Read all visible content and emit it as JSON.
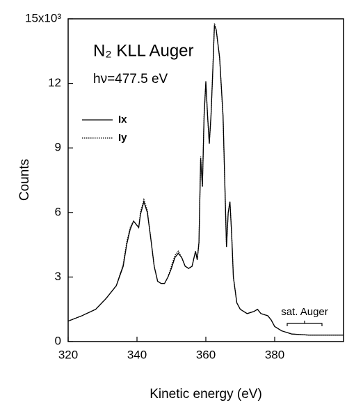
{
  "chart_data": {
    "type": "line",
    "title": "N₂ KLL Auger",
    "subtitle": "hν=477.5  eV",
    "x_label": "Kinetic energy (eV)",
    "y_label": "Counts",
    "annotation": "sat. Auger",
    "x": [
      320,
      324,
      328,
      331,
      334,
      336,
      337,
      338,
      339,
      340,
      340.5,
      341,
      342,
      343,
      344,
      345,
      346,
      347,
      348,
      349,
      350,
      351,
      352,
      353,
      354,
      355,
      356,
      357,
      357.5,
      358,
      358.5,
      359,
      359.5,
      360,
      360.5,
      361,
      361.5,
      362,
      362.5,
      363,
      364,
      365,
      366,
      366.5,
      367,
      367.5,
      368,
      369,
      370,
      372,
      374,
      375,
      376,
      378,
      379,
      380,
      382,
      385,
      390,
      395,
      400
    ],
    "series": [
      {
        "name": "Ix",
        "color": "#000000",
        "dash": "solid",
        "values": [
          0.95,
          1.2,
          1.5,
          2.0,
          2.6,
          3.5,
          4.5,
          5.2,
          5.6,
          5.4,
          5.3,
          5.9,
          6.5,
          6.0,
          4.8,
          3.5,
          2.8,
          2.7,
          2.7,
          3.0,
          3.4,
          3.9,
          4.1,
          3.9,
          3.5,
          3.4,
          3.5,
          4.2,
          3.8,
          4.6,
          8.5,
          7.2,
          10.5,
          12.1,
          10.5,
          9.2,
          10.5,
          12.5,
          14.7,
          14.5,
          13.2,
          10.5,
          4.4,
          6.0,
          6.5,
          5.0,
          3.0,
          1.8,
          1.5,
          1.3,
          1.4,
          1.5,
          1.3,
          1.2,
          1.0,
          0.7,
          0.5,
          0.35,
          0.3,
          0.3,
          0.3
        ]
      },
      {
        "name": "Iy",
        "color": "#000000",
        "dash": "dotted",
        "values": [
          0.95,
          1.2,
          1.5,
          2.0,
          2.6,
          3.6,
          4.6,
          5.3,
          5.6,
          5.4,
          5.3,
          6.0,
          6.6,
          6.1,
          4.8,
          3.5,
          2.8,
          2.7,
          2.7,
          3.0,
          3.5,
          4.0,
          4.2,
          3.9,
          3.5,
          3.4,
          3.5,
          4.2,
          3.8,
          4.6,
          8.6,
          7.2,
          10.6,
          12.0,
          10.5,
          9.2,
          10.5,
          12.5,
          14.8,
          14.5,
          13.2,
          10.4,
          4.4,
          6.0,
          6.5,
          5.0,
          3.0,
          1.8,
          1.5,
          1.3,
          1.4,
          1.5,
          1.3,
          1.2,
          1.0,
          0.7,
          0.5,
          0.35,
          0.3,
          0.3,
          0.3
        ]
      }
    ],
    "xlim": [
      320,
      400
    ],
    "xticks": [
      320,
      340,
      360,
      380
    ],
    "ylim": [
      0,
      15
    ],
    "yticks": [
      0,
      3,
      6,
      9,
      12,
      {
        "value": 15,
        "label": "15x10³"
      }
    ],
    "legend": "upper left",
    "grid": false
  }
}
